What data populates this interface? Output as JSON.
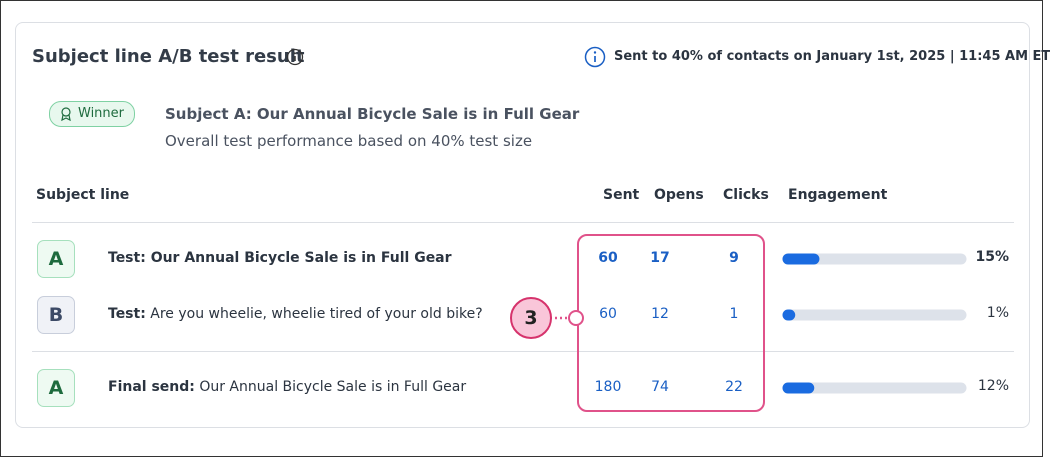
{
  "header": {
    "title": "Subject line A/B test result",
    "sent_info": "Sent to 40% of contacts on January 1st, 2025 | 11:45 AM ET"
  },
  "winner": {
    "badge": "Winner",
    "subject": "Subject A: Our Annual Bicycle Sale is in Full Gear",
    "note": "Overall test performance based on 40% test size"
  },
  "table": {
    "columns": [
      "Subject line",
      "Sent",
      "Opens",
      "Clicks",
      "Engagement"
    ],
    "rows": [
      {
        "letter": "A",
        "prefix": "Test:",
        "subject": "Our Annual Bicycle Sale is in Full Gear",
        "bold": true,
        "sent": 60,
        "opens": 17,
        "clicks": 9,
        "engagement": {
          "value": 15,
          "label": "15%"
        }
      },
      {
        "letter": "B",
        "prefix": "Test:",
        "subject": "Are you wheelie, wheelie tired of your old bike?",
        "bold": false,
        "sent": 60,
        "opens": 12,
        "clicks": 1,
        "engagement": {
          "value": 1,
          "label": "1%"
        }
      },
      {
        "letter": "A",
        "prefix": "Final send:",
        "subject": "Our Annual Bicycle Sale is in Full Gear",
        "bold": false,
        "sent": 180,
        "opens": 74,
        "clicks": 22,
        "engagement": {
          "value": 12,
          "label": "12%"
        }
      }
    ]
  },
  "callout": "3"
}
